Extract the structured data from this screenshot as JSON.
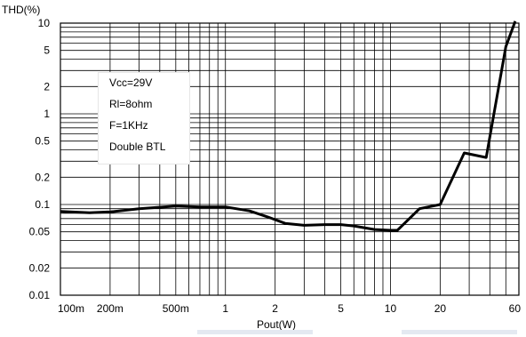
{
  "chart_data": {
    "type": "line",
    "x_scale": "log",
    "y_scale": "log",
    "xlabel": "Pout(W)",
    "ylabel": "THD(%)",
    "xlim": [
      0.1,
      60
    ],
    "ylim": [
      0.01,
      10
    ],
    "x_ticks": [
      {
        "value": 0.1,
        "label": "100m"
      },
      {
        "value": 0.2,
        "label": "200m"
      },
      {
        "value": 0.5,
        "label": "500m"
      },
      {
        "value": 1,
        "label": "1"
      },
      {
        "value": 2,
        "label": "2"
      },
      {
        "value": 5,
        "label": "5"
      },
      {
        "value": 10,
        "label": "10"
      },
      {
        "value": 20,
        "label": "20"
      },
      {
        "value": 60,
        "label": "60"
      }
    ],
    "y_ticks": [
      {
        "value": 0.01,
        "label": "0.01"
      },
      {
        "value": 0.02,
        "label": "0.02"
      },
      {
        "value": 0.05,
        "label": "0.05"
      },
      {
        "value": 0.1,
        "label": "0.1"
      },
      {
        "value": 0.2,
        "label": "0.2"
      },
      {
        "value": 0.5,
        "label": "0.5"
      },
      {
        "value": 1,
        "label": "1"
      },
      {
        "value": 2,
        "label": "2"
      },
      {
        "value": 5,
        "label": "5"
      },
      {
        "value": 10,
        "label": "10"
      }
    ],
    "grid": true,
    "legend_placement": "upper-left",
    "legend_text": [
      "Vcc=29V",
      "Rl=8ohm",
      "F=1KHz",
      "Double BTL"
    ],
    "series": [
      {
        "color": "#000000",
        "x": [
          0.1,
          0.15,
          0.2,
          0.3,
          0.5,
          0.7,
          1.0,
          1.4,
          1.8,
          2.3,
          3.0,
          4.0,
          5.0,
          6.0,
          8.0,
          10.0,
          11.0,
          15.0,
          20.0,
          28.0,
          38.0,
          50.0,
          57.0
        ],
        "values": [
          0.084,
          0.081,
          0.083,
          0.09,
          0.096,
          0.094,
          0.094,
          0.085,
          0.073,
          0.062,
          0.059,
          0.06,
          0.06,
          0.058,
          0.053,
          0.052,
          0.052,
          0.09,
          0.1,
          0.37,
          0.33,
          5.5,
          10.5
        ]
      }
    ]
  }
}
